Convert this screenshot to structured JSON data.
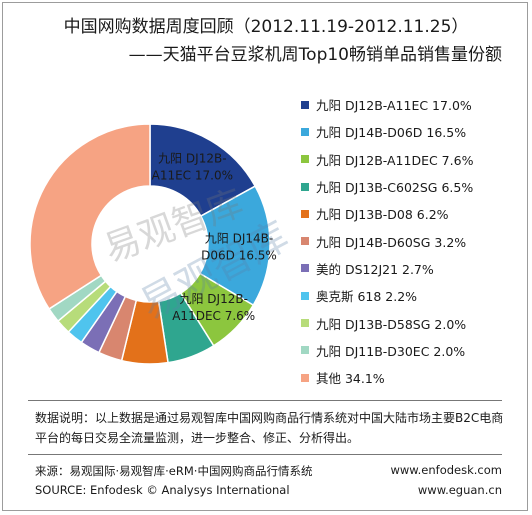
{
  "title_line1": "中国网购数据周度回顾（2012.11.19-2012.11.25）",
  "title_line2": "——天猫平台豆浆机周Top10畅销单品销售量份额",
  "chart_data": {
    "type": "pie",
    "title": "中国网购数据周度回顾（2012.11.19-2012.11.25）——天猫平台豆浆机周Top10畅销单品销售量份额",
    "unit": "%",
    "legend_position": "right",
    "categories": [
      "九阳 DJ12B-A11EC",
      "九阳 DJ14B-D06D",
      "九阳 DJ12B-A11DEC",
      "九阳 DJ13B-C602SG",
      "九阳 DJ13B-D08",
      "九阳 DJ14B-D60SG",
      "美的 DS12J21",
      "奥克斯 618",
      "九阳 DJ13B-D58SG",
      "九阳 DJ11B-D30EC",
      "其他"
    ],
    "values": [
      17.0,
      16.5,
      7.6,
      6.5,
      6.2,
      3.2,
      2.7,
      2.2,
      2.0,
      2.0,
      34.1
    ],
    "value_text": [
      "17.0%",
      "16.5%",
      "7.6%",
      "6.5%",
      "6.2%",
      "3.2%",
      "2.7%",
      "2.2%",
      "2.0%",
      "2.0%",
      "34.1%"
    ],
    "colors": [
      "#1f3f8f",
      "#3ba8dc",
      "#8cc63e",
      "#2fa68f",
      "#e3711a",
      "#d8866f",
      "#7b6fb6",
      "#4fc4ee",
      "#b7dc7a",
      "#a1d8c3",
      "#f6a383"
    ],
    "slice_labels": [
      {
        "line1": "九阳 DJ12B-",
        "line2": "A11EC 17.0%"
      },
      {
        "line1": "九阳 DJ14B-",
        "line2": "D06D  16.5%"
      },
      {
        "line1": "九阳 DJ12B-",
        "line2": "A11DEC 7.6%"
      }
    ]
  },
  "legend_items": [
    "九阳 DJ12B-A11EC 17.0%",
    "九阳 DJ14B-D06D  16.5%",
    "九阳 DJ12B-A11DEC 7.6%",
    "九阳 DJ13B-C602SG  6.5%",
    "九阳 DJ13B-D08 6.2%",
    "九阳 DJ14B-D60SG  3.2%",
    "美的 DS12J21 2.7%",
    "奥克斯 618 2.2%",
    "九阳 DJ13B-D58SG  2.0%",
    "九阳 DJ11B-D30EC 2.0%",
    "其他 34.1%"
  ],
  "watermark": {
    "text1": "易观智库",
    "text2": "易观智库"
  },
  "note": "数据说明：以上数据是通过易观智库中国网购商品行情系统对中国大陆市场主要B2C电商平台的每日交易全流量监测，进一步整合、修正、分析得出。",
  "footer": {
    "source_cn": "来源：易观国际·易观智库·eRM·中国网购商品行情系统",
    "source_en": "SOURCE: Enfodesk © Analysys International",
    "url1": "www.enfodesk.com",
    "url2": "www.eguan.cn"
  }
}
